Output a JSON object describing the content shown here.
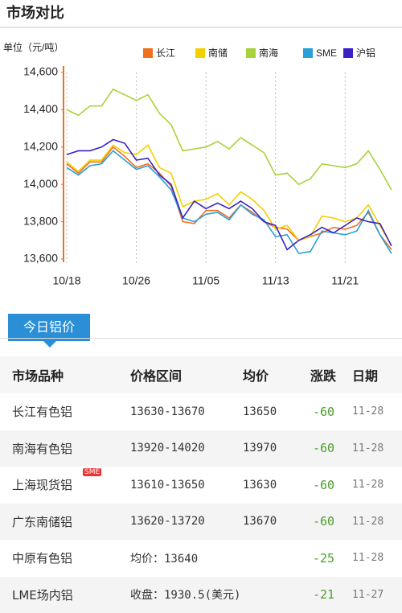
{
  "header": {
    "title": "市场对比"
  },
  "chart_data": {
    "type": "line",
    "y_label": "单位（元/吨）",
    "categories": [
      "10/18",
      null,
      null,
      null,
      null,
      null,
      "10/26",
      null,
      null,
      null,
      null,
      null,
      "11/05",
      null,
      null,
      null,
      null,
      null,
      "11/13",
      null,
      null,
      null,
      null,
      null,
      "11/21",
      null,
      null,
      null,
      null
    ],
    "ylim": [
      13600,
      14600
    ],
    "yticks": [
      {
        "value": 13600,
        "label": "13,600"
      },
      {
        "value": 13800,
        "label": "13,800"
      },
      {
        "value": 14000,
        "label": "14,000"
      },
      {
        "value": 14200,
        "label": "14,200"
      },
      {
        "value": 14400,
        "label": "14,400"
      },
      {
        "value": 14600,
        "label": "14,600"
      }
    ],
    "x_grid": true,
    "series": [
      {
        "name": "长江",
        "color": "#f07020",
        "values": [
          14110,
          14060,
          14120,
          14120,
          14200,
          14150,
          14090,
          14110,
          14060,
          13990,
          13800,
          13790,
          13860,
          13860,
          13820,
          13890,
          13850,
          13800,
          13770,
          13760,
          13700,
          13720,
          13740,
          13770,
          13760,
          13780,
          13850,
          13730,
          13650
        ]
      },
      {
        "name": "南储",
        "color": "#f5d000",
        "values": [
          14120,
          14070,
          14130,
          14130,
          14210,
          14170,
          14160,
          14210,
          14090,
          14060,
          13880,
          13910,
          13920,
          13950,
          13890,
          13960,
          13920,
          13860,
          13760,
          13780,
          13700,
          13720,
          13830,
          13820,
          13800,
          13820,
          13890,
          13780,
          13670
        ]
      },
      {
        "name": "南海",
        "color": "#a8d23a",
        "values": [
          14400,
          14370,
          14420,
          14420,
          14510,
          14480,
          14450,
          14480,
          14380,
          14320,
          14180,
          14190,
          14200,
          14230,
          14190,
          14250,
          14210,
          14170,
          14050,
          14060,
          14000,
          14030,
          14110,
          14100,
          14090,
          14110,
          14180,
          14080,
          13970
        ]
      },
      {
        "name": "SME",
        "color": "#2a9fd8",
        "values": [
          14090,
          14050,
          14100,
          14110,
          14180,
          14130,
          14080,
          14100,
          14040,
          13970,
          13820,
          13800,
          13840,
          13850,
          13810,
          13890,
          13840,
          13810,
          13720,
          13730,
          13630,
          13640,
          13750,
          13740,
          13730,
          13750,
          13860,
          13730,
          13630
        ]
      },
      {
        "name": "沪铝",
        "color": "#3a22c8",
        "values": [
          14160,
          14180,
          14180,
          14200,
          14240,
          14220,
          14130,
          14140,
          14050,
          14000,
          13820,
          13910,
          13870,
          13900,
          13870,
          13910,
          13870,
          13800,
          13780,
          13650,
          13700,
          13730,
          13770,
          13740,
          13780,
          13820,
          13800,
          13790,
          13670
        ]
      }
    ]
  },
  "table": {
    "tab": "今日铝价",
    "columns": [
      "市场品种",
      "价格区间",
      "均价",
      "涨跌",
      "日期"
    ],
    "rows": [
      {
        "name": "长江有色铝",
        "range": "13630-13670",
        "avg": 13650,
        "change": -60,
        "date": "11-28"
      },
      {
        "name": "南海有色铝",
        "range": "13920-14020",
        "avg": 13970,
        "change": -60,
        "date": "11-28"
      },
      {
        "name": "上海现货铝",
        "badge": "SME",
        "range": "13610-13650",
        "avg": 13630,
        "change": -60,
        "date": "11-28"
      },
      {
        "name": "广东南储铝",
        "range": "13620-13720",
        "avg": 13670,
        "change": -60,
        "date": "11-28"
      },
      {
        "name": "中原有色铝",
        "range": "均价：13640",
        "change": -25,
        "date": "11-28"
      },
      {
        "name": "LME场内铝",
        "range": "收盘：1930.5(美元)",
        "change": -21,
        "date": "11-27"
      }
    ]
  }
}
